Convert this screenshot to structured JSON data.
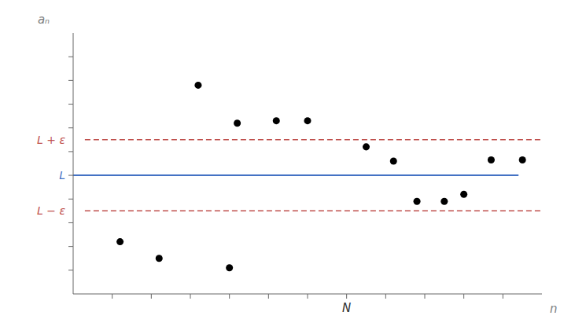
{
  "chart_data": {
    "type": "scatter",
    "x": [
      1.2,
      2.2,
      3.2,
      4.2,
      5.2,
      4.0,
      6.0,
      7.5,
      8.2,
      8.8,
      9.5,
      10.0,
      10.7,
      11.5
    ],
    "values": [
      2.2,
      1.5,
      8.8,
      7.2,
      7.3,
      1.1,
      7.3,
      6.2,
      5.6,
      3.9,
      3.9,
      4.2,
      5.65,
      5.65
    ],
    "color": "#000000",
    "xlim": [
      0,
      12
    ],
    "ylim": [
      0,
      11
    ],
    "xticks": [
      1,
      2,
      3,
      4,
      5,
      6,
      7,
      8,
      9,
      10,
      11
    ],
    "yticks": [
      1,
      2,
      3,
      4,
      5,
      6,
      7,
      8,
      9,
      10
    ],
    "tick_labels": false,
    "grid": false,
    "xlabel": "n",
    "ylabel": "aₙ",
    "hlines": [
      {
        "y": 5.0,
        "x": [
          0,
          11.4
        ],
        "label": "L",
        "color": "#4472C4",
        "line_style": "solid"
      },
      {
        "y": 6.5,
        "x": [
          0.3,
          12
        ],
        "label": "L + ε",
        "color": "#C0504D",
        "line_style": "dashed"
      },
      {
        "y": 3.5,
        "x": [
          0.3,
          12
        ],
        "label": "L − ε",
        "color": "#C0504D",
        "line_style": "dashed"
      }
    ],
    "annotations": [
      {
        "text": "N",
        "x": 7
      }
    ]
  }
}
